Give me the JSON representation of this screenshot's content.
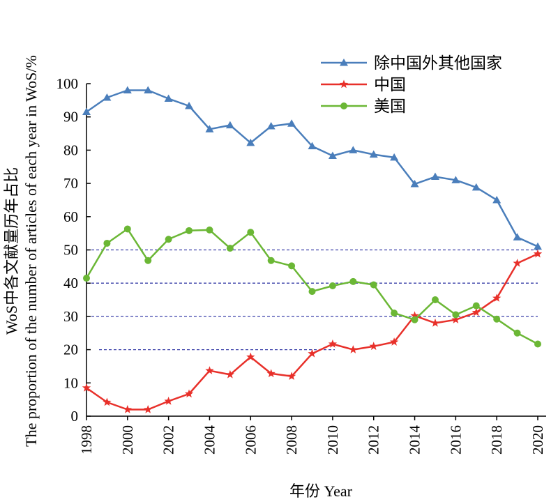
{
  "chart_data": {
    "type": "line",
    "xlabel": "年份 Year",
    "ylabel_line1": "WoS中各文献量历年占比",
    "ylabel_line2": "The proportion of the number of articles of each year in WoS/%",
    "xlim": [
      1998,
      2020
    ],
    "ylim": [
      0,
      100
    ],
    "xticks": [
      1998,
      2000,
      2002,
      2004,
      2006,
      2008,
      2010,
      2012,
      2014,
      2016,
      2018,
      2020
    ],
    "yticks": [
      0,
      10,
      20,
      30,
      40,
      50,
      60,
      70,
      80,
      90,
      100
    ],
    "legend_position": "top-right",
    "grid": "dashed reference lines at 20, 30, 40, 50",
    "x": [
      1998,
      1999,
      2000,
      2001,
      2002,
      2003,
      2004,
      2005,
      2006,
      2007,
      2008,
      2009,
      2010,
      2011,
      2012,
      2013,
      2014,
      2015,
      2016,
      2017,
      2018,
      2019,
      2020
    ],
    "series": [
      {
        "name": "除中国外其他国家",
        "color": "#4a7ebb",
        "marker": "triangle",
        "values": [
          91.5,
          95.8,
          98.0,
          98.0,
          95.5,
          93.3,
          86.3,
          87.5,
          82.2,
          87.2,
          88.0,
          81.2,
          78.3,
          80.0,
          78.7,
          77.8,
          69.8,
          72.0,
          71.0,
          68.8,
          65.0,
          53.8,
          51.0
        ]
      },
      {
        "name": "中国",
        "color": "#e8302a",
        "marker": "star",
        "values": [
          8.5,
          4.2,
          2.0,
          2.0,
          4.5,
          6.7,
          13.7,
          12.5,
          17.8,
          12.8,
          12.0,
          18.8,
          21.7,
          20.0,
          21.0,
          22.3,
          30.2,
          28.0,
          29.0,
          31.2,
          35.5,
          46.0,
          48.8
        ]
      },
      {
        "name": "美国",
        "color": "#6bb735",
        "marker": "circle",
        "values": [
          41.5,
          52.0,
          56.3,
          46.8,
          53.2,
          55.8,
          56.0,
          50.5,
          55.3,
          46.8,
          45.2,
          37.5,
          39.2,
          40.5,
          39.5,
          31.0,
          29.0,
          35.0,
          30.5,
          33.2,
          29.2,
          25.0,
          21.7
        ]
      }
    ]
  }
}
